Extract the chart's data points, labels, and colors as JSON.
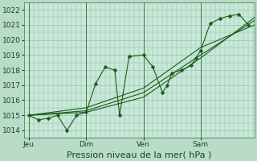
{
  "background_color": "#b8dcc8",
  "plot_bg_color": "#c8e8d8",
  "grid_color": "#90bba8",
  "line_color": "#1a5c1a",
  "marker_color": "#1a5c1a",
  "xlabel": "Pression niveau de la mer( hPa )",
  "ylim": [
    1013.5,
    1022.5
  ],
  "yticks": [
    1014,
    1015,
    1016,
    1017,
    1018,
    1019,
    1020,
    1021,
    1022
  ],
  "xtick_labels": [
    "Jeu",
    "Dim",
    "Ven",
    "Sam"
  ],
  "xtick_positions": [
    6,
    78,
    150,
    222
  ],
  "vline_positions": [
    6,
    78,
    150,
    222
  ],
  "xlim": [
    0,
    290
  ],
  "series_main": [
    [
      6,
      1015.0
    ],
    [
      18,
      1014.7
    ],
    [
      30,
      1014.8
    ],
    [
      42,
      1015.0
    ],
    [
      54,
      1014.0
    ],
    [
      66,
      1015.0
    ],
    [
      78,
      1015.2
    ],
    [
      90,
      1017.1
    ],
    [
      102,
      1018.2
    ],
    [
      114,
      1018.0
    ],
    [
      120,
      1015.0
    ],
    [
      132,
      1018.9
    ],
    [
      150,
      1019.0
    ],
    [
      162,
      1018.2
    ],
    [
      174,
      1016.5
    ],
    [
      180,
      1017.0
    ],
    [
      186,
      1017.8
    ],
    [
      198,
      1018.0
    ],
    [
      210,
      1018.3
    ],
    [
      216,
      1018.8
    ],
    [
      222,
      1019.3
    ],
    [
      234,
      1021.1
    ],
    [
      246,
      1021.4
    ],
    [
      258,
      1021.6
    ],
    [
      270,
      1021.7
    ],
    [
      282,
      1021.0
    ]
  ],
  "series_trend": [
    [
      [
        6,
        1015.0
      ],
      [
        78,
        1015.5
      ],
      [
        150,
        1016.8
      ],
      [
        222,
        1019.5
      ],
      [
        290,
        1021.0
      ]
    ],
    [
      [
        6,
        1015.0
      ],
      [
        78,
        1015.3
      ],
      [
        150,
        1016.5
      ],
      [
        222,
        1019.0
      ],
      [
        290,
        1021.3
      ]
    ],
    [
      [
        6,
        1015.0
      ],
      [
        78,
        1015.2
      ],
      [
        150,
        1016.2
      ],
      [
        222,
        1018.8
      ],
      [
        290,
        1021.5
      ]
    ]
  ],
  "marker_size": 2.5,
  "line_width": 0.8,
  "xlabel_fontsize": 8,
  "tick_fontsize": 6.5
}
